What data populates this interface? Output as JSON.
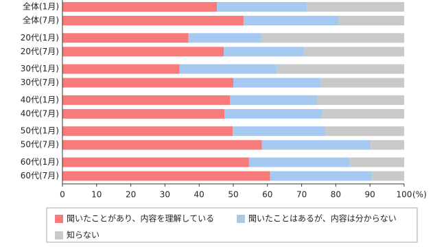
{
  "chart_data": {
    "type": "stacked-bar-horizontal",
    "categories": [
      "全体(1月)",
      "全体(7月)",
      "20代(1月)",
      "20代(7月)",
      "30代(1月)",
      "30代(7月)",
      "40代(1月)",
      "40代(7月)",
      "50代(1月)",
      "50代(7月)",
      "60代(1月)",
      "60代(7月)"
    ],
    "series": [
      {
        "name": "聞いたことがあり、内容を理解している",
        "color": "#f77b7b",
        "values": [
          45.2,
          53.0,
          36.9,
          47.2,
          34.3,
          50.0,
          49.0,
          47.4,
          49.8,
          58.4,
          54.6,
          60.8
        ]
      },
      {
        "name": "聞いたことはあるが、内容は分からない",
        "color": "#a6c9f1",
        "values": [
          26.3,
          27.9,
          21.3,
          23.5,
          28.4,
          25.5,
          25.5,
          28.5,
          27.1,
          31.8,
          29.5,
          29.8
        ]
      },
      {
        "name": "知らない",
        "color": "#c9c9c9",
        "values": [
          28.5,
          19.1,
          41.8,
          29.3,
          37.3,
          24.5,
          25.5,
          24.1,
          23.1,
          9.8,
          15.9,
          9.4
        ]
      }
    ],
    "xlim": [
      0,
      100
    ],
    "xticks": [
      0,
      10,
      20,
      30,
      40,
      50,
      60,
      70,
      80,
      90,
      100
    ],
    "x_unit": "(%)"
  }
}
